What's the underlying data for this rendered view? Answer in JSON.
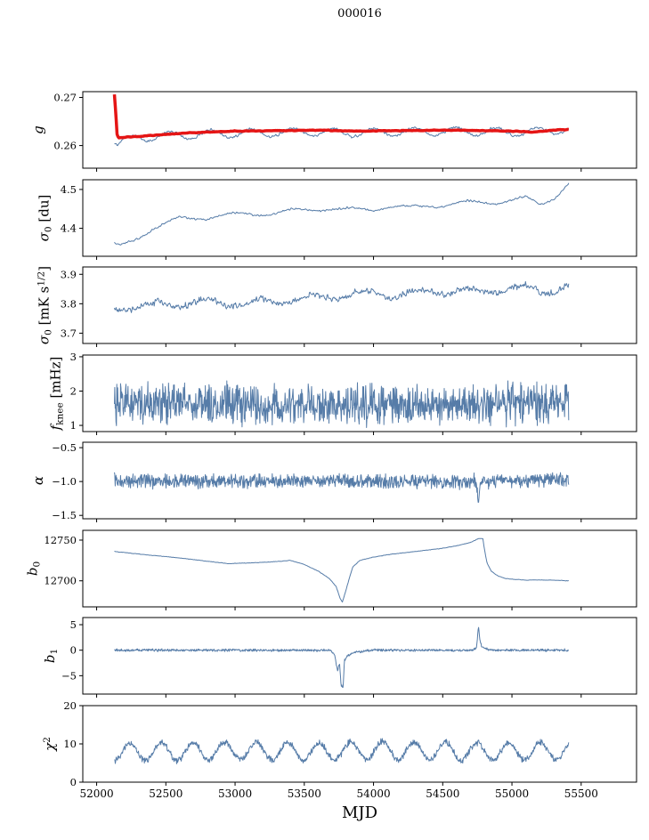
{
  "figure": {
    "title": "000016",
    "bg": "#ffffff",
    "frame_color": "#000000",
    "blue": "#567ca8",
    "red": "#e51515"
  },
  "chart_data": {
    "type": "line",
    "title": "000016",
    "xlabel": "MJD",
    "xlim": [
      51900,
      55900
    ],
    "xticks": [
      52000,
      52500,
      53000,
      53500,
      54000,
      54500,
      55000,
      55500
    ],
    "xtick_labels": [
      "52000",
      "52500",
      "53000",
      "53500",
      "54000",
      "54500",
      "55000",
      "55500"
    ],
    "grid": false,
    "legend": "none",
    "subplots": [
      {
        "name": "g",
        "ylabel": [
          {
            "t": "g",
            "i": 1
          }
        ],
        "ylim": [
          0.2553,
          0.2712
        ],
        "yticks": [
          0.26,
          0.27
        ],
        "ytick_labels": [
          "0.26",
          "0.27"
        ],
        "series": [
          {
            "color": "#567ca8",
            "width": 1,
            "seed": 11,
            "n": 700,
            "x0": 52128,
            "x1": 55410,
            "noise": 0.00045,
            "noise_smooth": 2,
            "osc": {
              "period": 295,
              "amp": 0.00085,
              "phase": 1.2
            },
            "anchors": [
              [
                52128,
                0.2612
              ],
              [
                52150,
                0.2601
              ],
              [
                52190,
                0.2609
              ],
              [
                52300,
                0.2616
              ],
              [
                52500,
                0.262
              ],
              [
                52800,
                0.2624
              ],
              [
                53100,
                0.2626
              ],
              [
                53500,
                0.2628
              ],
              [
                53900,
                0.2627
              ],
              [
                54300,
                0.2629
              ],
              [
                54700,
                0.2629
              ],
              [
                55000,
                0.2628
              ],
              [
                55200,
                0.2629
              ],
              [
                55410,
                0.2634
              ]
            ]
          },
          {
            "color": "#e51515",
            "width": 3.5,
            "seed": 7,
            "n": 500,
            "x0": 52128,
            "x1": 55410,
            "noise": 0.00012,
            "noise_smooth": 3,
            "anchors": [
              [
                52128,
                0.2706
              ],
              [
                52138,
                0.2668
              ],
              [
                52148,
                0.2622
              ],
              [
                52160,
                0.2616
              ],
              [
                52250,
                0.2618
              ],
              [
                52450,
                0.2622
              ],
              [
                52700,
                0.2627
              ],
              [
                53000,
                0.263
              ],
              [
                53300,
                0.2631
              ],
              [
                53600,
                0.2632
              ],
              [
                53900,
                0.263
              ],
              [
                54200,
                0.2631
              ],
              [
                54500,
                0.2632
              ],
              [
                54800,
                0.2631
              ],
              [
                55000,
                0.263
              ],
              [
                55150,
                0.2628
              ],
              [
                55300,
                0.2632
              ],
              [
                55410,
                0.2633
              ]
            ]
          }
        ]
      },
      {
        "name": "sigma0-du",
        "ylabel": [
          {
            "t": "σ",
            "i": 1
          },
          {
            "t": "0",
            "sub": 1
          },
          {
            "t": " [du]"
          }
        ],
        "ylim": [
          4.328,
          4.525
        ],
        "yticks": [
          4.4,
          4.5
        ],
        "ytick_labels": [
          "4.4",
          "4.5"
        ],
        "series": [
          {
            "color": "#567ca8",
            "width": 1,
            "seed": 21,
            "n": 700,
            "x0": 52128,
            "x1": 55410,
            "noise": 0.004,
            "noise_smooth": 2,
            "osc": {
              "period": 420,
              "amp": 0.006,
              "phase": 0.5
            },
            "anchors": [
              [
                52128,
                4.356
              ],
              [
                52170,
                4.352
              ],
              [
                52250,
                4.366
              ],
              [
                52400,
                4.4
              ],
              [
                52600,
                4.424
              ],
              [
                52750,
                4.428
              ],
              [
                52900,
                4.432
              ],
              [
                53100,
                4.437
              ],
              [
                53300,
                4.44
              ],
              [
                53500,
                4.447
              ],
              [
                53650,
                4.452
              ],
              [
                53800,
                4.446
              ],
              [
                53950,
                4.449
              ],
              [
                54100,
                4.456
              ],
              [
                54250,
                4.452
              ],
              [
                54400,
                4.458
              ],
              [
                54550,
                4.462
              ],
              [
                54700,
                4.466
              ],
              [
                54850,
                4.468
              ],
              [
                55000,
                4.472
              ],
              [
                55100,
                4.476
              ],
              [
                55200,
                4.462
              ],
              [
                55300,
                4.48
              ],
              [
                55410,
                4.515
              ]
            ]
          }
        ]
      },
      {
        "name": "sigma0-mK",
        "ylabel": [
          {
            "t": "σ",
            "i": 1
          },
          {
            "t": "0",
            "sub": 1
          },
          {
            "t": " [mK s"
          },
          {
            "t": "1/2",
            "sup": 1
          },
          {
            "t": "]"
          }
        ],
        "ylim": [
          3.665,
          3.925
        ],
        "yticks": [
          3.7,
          3.8,
          3.9
        ],
        "ytick_labels": [
          "3.7",
          "3.8",
          "3.9"
        ],
        "series": [
          {
            "color": "#567ca8",
            "width": 1,
            "seed": 31,
            "n": 800,
            "x0": 52128,
            "x1": 55410,
            "noise": 0.018,
            "noise_smooth": 2,
            "osc": {
              "period": 380,
              "amp": 0.012,
              "phase": 2.0
            },
            "anchors": [
              [
                52128,
                3.785
              ],
              [
                52300,
                3.79
              ],
              [
                52600,
                3.8
              ],
              [
                52900,
                3.805
              ],
              [
                53100,
                3.8
              ],
              [
                53300,
                3.81
              ],
              [
                53500,
                3.815
              ],
              [
                53800,
                3.83
              ],
              [
                54000,
                3.835
              ],
              [
                54200,
                3.83
              ],
              [
                54500,
                3.845
              ],
              [
                54700,
                3.84
              ],
              [
                54900,
                3.85
              ],
              [
                55100,
                3.85
              ],
              [
                55250,
                3.845
              ],
              [
                55410,
                3.855
              ]
            ]
          }
        ]
      },
      {
        "name": "fknee",
        "ylabel": [
          {
            "t": "f",
            "i": 1
          },
          {
            "t": "knee",
            "sub": 1
          },
          {
            "t": " [mHz]"
          }
        ],
        "ylim": [
          0.82,
          3.05
        ],
        "yticks": [
          1,
          2,
          3
        ],
        "ytick_labels": [
          "1",
          "2",
          "3"
        ],
        "series": [
          {
            "color": "#567ca8",
            "width": 1,
            "seed": 41,
            "n": 1100,
            "x0": 52128,
            "x1": 55410,
            "noise": 0.7,
            "noise_smooth": 1,
            "anchors": [
              [
                52128,
                1.62
              ],
              [
                53000,
                1.63
              ],
              [
                54000,
                1.6
              ],
              [
                55410,
                1.62
              ]
            ]
          }
        ]
      },
      {
        "name": "alpha",
        "ylabel": [
          {
            "t": "α",
            "i": 1
          }
        ],
        "ylim": [
          -1.55,
          -0.42
        ],
        "yticks": [
          -1.5,
          -1.0,
          -0.5
        ],
        "ytick_labels": [
          "−1.5",
          "−1.0",
          "−0.5"
        ],
        "series": [
          {
            "color": "#567ca8",
            "width": 1,
            "seed": 51,
            "n": 1100,
            "x0": 52128,
            "x1": 55410,
            "noise": 0.13,
            "noise_smooth": 1,
            "anchors": [
              [
                52128,
                -0.99
              ],
              [
                53000,
                -1.0
              ],
              [
                54000,
                -0.99
              ],
              [
                54740,
                -1.0
              ],
              [
                54758,
                -1.25
              ],
              [
                54775,
                -1.0
              ],
              [
                55410,
                -0.97
              ]
            ]
          }
        ]
      },
      {
        "name": "b0",
        "ylabel": [
          {
            "t": "b",
            "i": 1
          },
          {
            "t": "0",
            "sub": 1
          }
        ],
        "ylim": [
          12668,
          12762
        ],
        "yticks": [
          12700,
          12750
        ],
        "ytick_labels": [
          "12700",
          "12750"
        ],
        "series": [
          {
            "color": "#567ca8",
            "width": 1,
            "seed": 61,
            "n": 800,
            "x0": 52128,
            "x1": 55410,
            "noise": 0.5,
            "noise_smooth": 2,
            "anchors": [
              [
                52128,
                12736
              ],
              [
                52300,
                12733
              ],
              [
                52600,
                12728
              ],
              [
                52800,
                12724
              ],
              [
                52950,
                12721
              ],
              [
                53100,
                12722
              ],
              [
                53250,
                12723
              ],
              [
                53400,
                12725
              ],
              [
                53500,
                12720
              ],
              [
                53600,
                12712
              ],
              [
                53680,
                12703
              ],
              [
                53730,
                12693
              ],
              [
                53760,
                12678
              ],
              [
                53775,
                12674
              ],
              [
                53790,
                12682
              ],
              [
                53820,
                12700
              ],
              [
                53850,
                12717
              ],
              [
                53900,
                12725
              ],
              [
                54000,
                12729
              ],
              [
                54100,
                12732
              ],
              [
                54200,
                12734
              ],
              [
                54350,
                12737
              ],
              [
                54500,
                12740
              ],
              [
                54600,
                12743
              ],
              [
                54700,
                12747
              ],
              [
                54760,
                12752
              ],
              [
                54790,
                12752
              ],
              [
                54800,
                12740
              ],
              [
                54820,
                12722
              ],
              [
                54850,
                12712
              ],
              [
                54900,
                12706
              ],
              [
                54950,
                12703
              ],
              [
                55000,
                12702
              ],
              [
                55100,
                12701
              ],
              [
                55250,
                12701
              ],
              [
                55410,
                12700
              ]
            ]
          }
        ]
      },
      {
        "name": "b1",
        "ylabel": [
          {
            "t": "b",
            "i": 1
          },
          {
            "t": "1",
            "sub": 1
          }
        ],
        "ylim": [
          -8.6,
          6.4
        ],
        "yticks": [
          -5,
          0,
          5
        ],
        "ytick_labels": [
          "−5",
          "0",
          "5"
        ],
        "series": [
          {
            "color": "#567ca8",
            "width": 1,
            "seed": 71,
            "n": 1100,
            "x0": 52128,
            "x1": 55410,
            "noise": 0.3,
            "noise_smooth": 1,
            "anchors": [
              [
                52128,
                0
              ],
              [
                53690,
                0
              ],
              [
                53720,
                -1.0
              ],
              [
                53740,
                -4.0
              ],
              [
                53755,
                -2.5
              ],
              [
                53765,
                -6.8
              ],
              [
                53780,
                -7.5
              ],
              [
                53790,
                -2.0
              ],
              [
                53810,
                -1.2
              ],
              [
                53840,
                -0.6
              ],
              [
                53900,
                -0.3
              ],
              [
                53980,
                0
              ],
              [
                54720,
                0
              ],
              [
                54745,
                0.5
              ],
              [
                54758,
                4.9
              ],
              [
                54768,
                2.2
              ],
              [
                54780,
                0.8
              ],
              [
                54810,
                0.3
              ],
              [
                54860,
                0
              ],
              [
                55410,
                0
              ]
            ]
          }
        ]
      },
      {
        "name": "chi2",
        "ylabel": [
          {
            "t": "χ",
            "i": 1
          },
          {
            "t": "2",
            "sup": 1
          }
        ],
        "ylim": [
          0,
          20
        ],
        "yticks": [
          0,
          10,
          20
        ],
        "ytick_labels": [
          "0",
          "10",
          "20"
        ],
        "series": [
          {
            "color": "#567ca8",
            "width": 1,
            "seed": 81,
            "n": 1000,
            "x0": 52128,
            "x1": 55410,
            "noise": 1.0,
            "noise_smooth": 1,
            "osc": {
              "period": 228,
              "amp": 2.3,
              "phase": 0.8
            },
            "anchors": [
              [
                52128,
                7.8
              ],
              [
                52500,
                8.0
              ],
              [
                53000,
                8.2
              ],
              [
                53500,
                8.0
              ],
              [
                54000,
                8.3
              ],
              [
                54500,
                8.1
              ],
              [
                55000,
                8.0
              ],
              [
                55410,
                8.2
              ]
            ]
          }
        ]
      }
    ]
  }
}
